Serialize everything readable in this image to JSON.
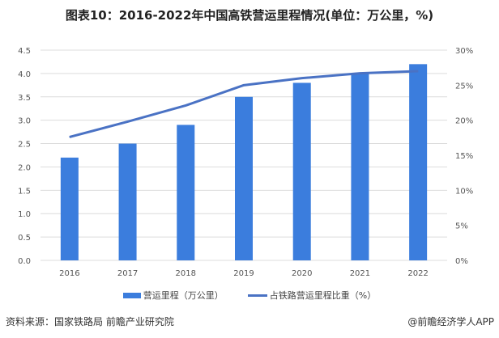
{
  "chart_data": {
    "type": "bar+line",
    "title": "图表10：2016-2022年中国高铁营运里程情况(单位：万公里，%)",
    "categories": [
      "2016",
      "2017",
      "2018",
      "2019",
      "2020",
      "2021",
      "2022"
    ],
    "series": [
      {
        "name": "营运里程（万公里）",
        "type": "bar",
        "axis": "left",
        "color": "#3b7ddd",
        "values": [
          2.2,
          2.5,
          2.9,
          3.5,
          3.8,
          4.0,
          4.2
        ]
      },
      {
        "name": "占铁路营运里程比重（%）",
        "type": "line",
        "axis": "right",
        "color": "#4a72c4",
        "values": [
          17.6,
          19.8,
          22.1,
          25.0,
          26.0,
          26.7,
          27.0
        ]
      }
    ],
    "left_axis": {
      "ylim": [
        0,
        4.5
      ],
      "ticks": [
        "0.0",
        "0.5",
        "1.0",
        "1.5",
        "2.0",
        "2.5",
        "3.0",
        "3.5",
        "4.0",
        "4.5"
      ]
    },
    "right_axis": {
      "ylim": [
        0,
        30
      ],
      "ticks": [
        "0%",
        "5%",
        "10%",
        "15%",
        "20%",
        "25%",
        "30%"
      ]
    },
    "grid": true,
    "legend": "bottom"
  },
  "footer": {
    "source": "资料来源：国家铁路局 前瞻产业研究院",
    "credit": "@前瞻经济学人APP"
  }
}
